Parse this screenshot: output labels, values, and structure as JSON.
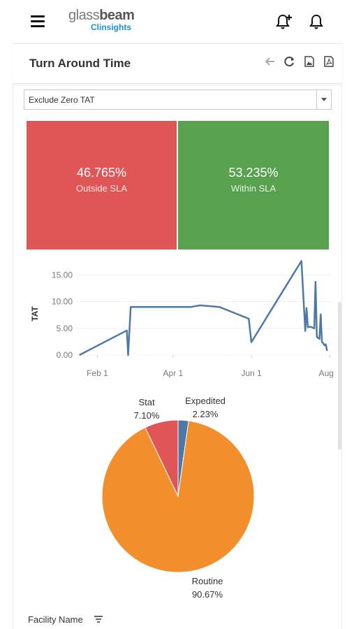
{
  "header": {
    "logo_main_light": "glass",
    "logo_main_bold": "beam",
    "logo_sub": "Clinsights",
    "icons": [
      "menu-icon",
      "add-alert-icon",
      "bell-icon"
    ]
  },
  "panel": {
    "title": "Turn Around Time",
    "actions": [
      "back-arrow-icon",
      "refresh-icon",
      "image-export-icon",
      "pdf-export-icon"
    ]
  },
  "filter": {
    "selected": "Exclude Zero TAT"
  },
  "tiles": [
    {
      "value": "46.765%",
      "label": "Outside SLA",
      "color": "#e05656"
    },
    {
      "value": "53.235%",
      "label": "Within SLA",
      "color": "#58a14e"
    }
  ],
  "chart_data": [
    {
      "type": "line",
      "ylabel": "TAT",
      "xlabel": "",
      "x_ticks": [
        "Feb 1",
        "Apr 1",
        "Jun 1",
        "Aug 1"
      ],
      "y_ticks": [
        "0.00",
        "5.00",
        "10.00",
        "15.00"
      ],
      "ylim": [
        0,
        17
      ],
      "xlim": [
        "2021-01-16",
        "2021-08-02"
      ],
      "grid": true,
      "color": "#4e79a7",
      "series": [
        {
          "points": [
            [
              "2021-01-18",
              0.0
            ],
            [
              "2021-02-24",
              4.6
            ],
            [
              "2021-02-25",
              0.0
            ],
            [
              "2021-02-27",
              9.0
            ],
            [
              "2021-04-15",
              9.0
            ],
            [
              "2021-04-22",
              9.3
            ],
            [
              "2021-05-07",
              9.0
            ],
            [
              "2021-05-30",
              6.8
            ],
            [
              "2021-06-01",
              2.4
            ],
            [
              "2021-07-10",
              17.6
            ],
            [
              "2021-07-13",
              4.5
            ],
            [
              "2021-07-14",
              8.8
            ],
            [
              "2021-07-15",
              5.2
            ],
            [
              "2021-07-17",
              5.3
            ],
            [
              "2021-07-20",
              5.0
            ],
            [
              "2021-07-21",
              13.7
            ],
            [
              "2021-07-22",
              3.4
            ],
            [
              "2021-07-24",
              3.0
            ],
            [
              "2021-07-25",
              7.6
            ],
            [
              "2021-07-26",
              2.4
            ],
            [
              "2021-07-27",
              2.2
            ],
            [
              "2021-07-28",
              1.8
            ],
            [
              "2021-07-29",
              2.0
            ],
            [
              "2021-07-30",
              0.8
            ]
          ]
        }
      ]
    },
    {
      "type": "pie",
      "slices": [
        {
          "name": "Expedited",
          "value": 2.23,
          "label": "2.23%",
          "color": "#4e79a7"
        },
        {
          "name": "Routine",
          "value": 90.67,
          "label": "90.67%",
          "color": "#f28e2b"
        },
        {
          "name": "Stat",
          "value": 7.1,
          "label": "7.10%",
          "color": "#e05656"
        }
      ]
    }
  ],
  "footer": {
    "facility_label": "Facility Name",
    "sort_icon": "sort-icon"
  }
}
